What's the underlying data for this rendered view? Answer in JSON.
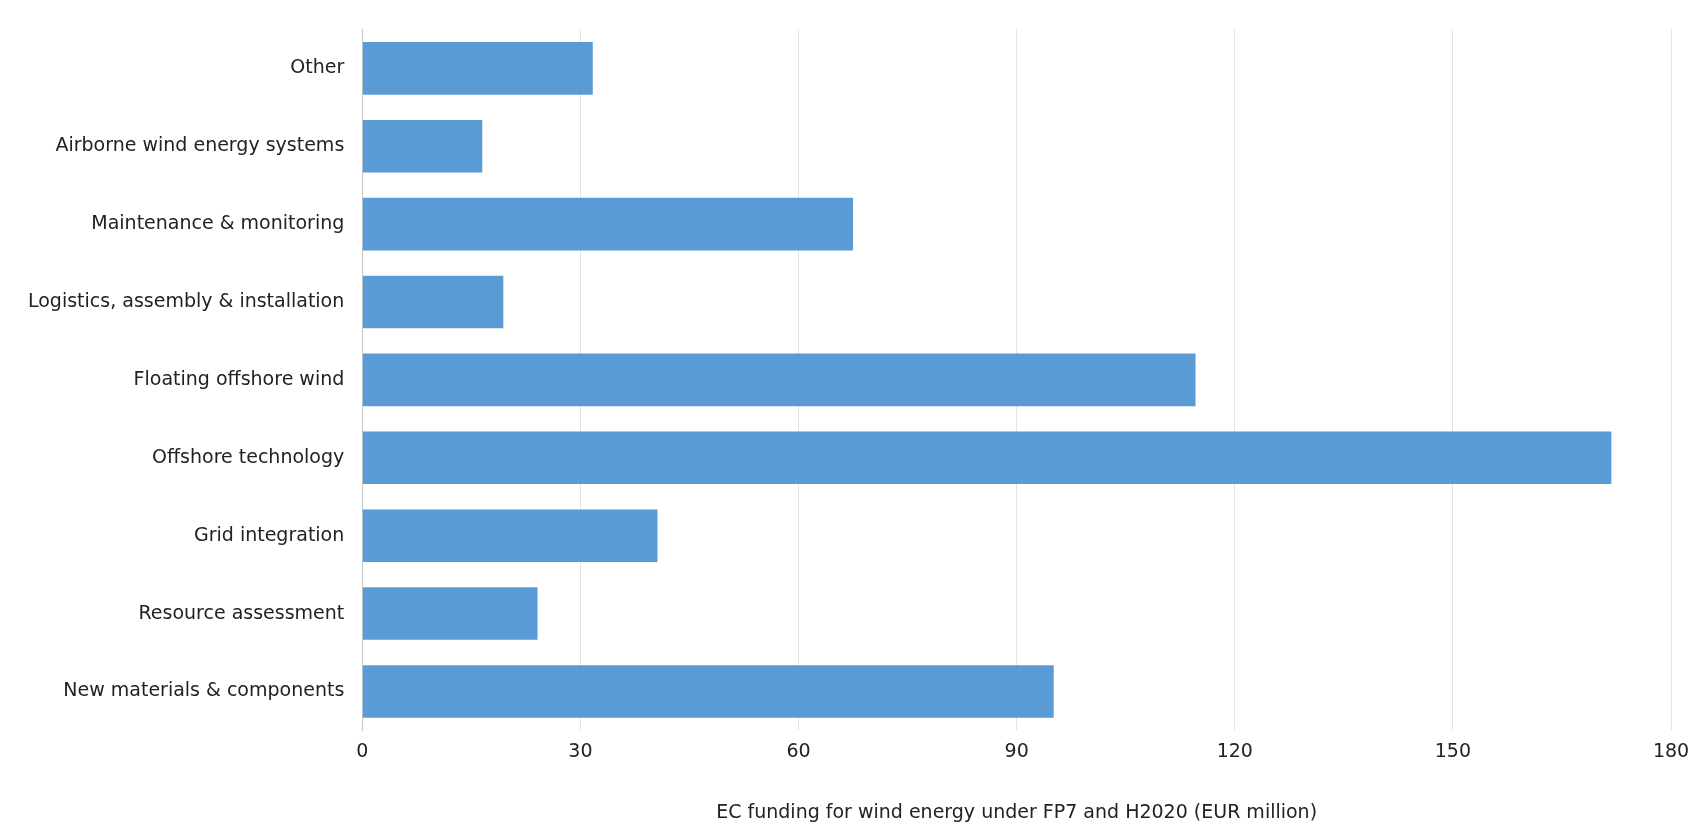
{
  "chart_data": {
    "type": "bar",
    "orientation": "horizontal",
    "xlabel": "EC funding for wind energy under FP7 and H2020 (EUR million)",
    "categories": [
      "Other",
      "Airborne wind energy systems",
      "Maintenance & monitoring",
      "Logistics, assembly & installation",
      "Floating offshore wind",
      "Offshore technology",
      "Grid integration",
      "Resource assessment",
      "New materials & components"
    ],
    "values": [
      31.7,
      16.5,
      67.5,
      19.4,
      114.6,
      171.8,
      40.6,
      24.1,
      95.1
    ],
    "color": "#5b9bd5",
    "xlim": [
      0,
      180
    ],
    "xticks": [
      0,
      30,
      60,
      90,
      120,
      150,
      180
    ],
    "grid": "x",
    "legend": false
  }
}
